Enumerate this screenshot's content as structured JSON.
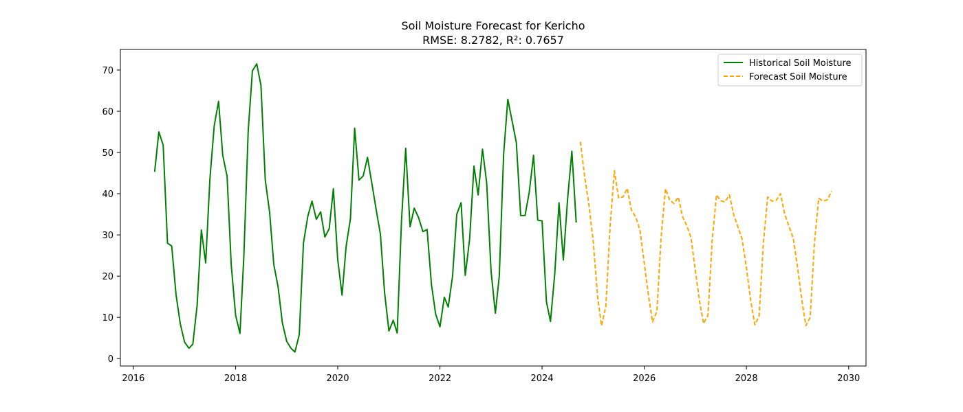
{
  "chart_data": {
    "type": "line",
    "title": "Soil Moisture Forecast for Kericho",
    "subtitle": "RMSE: 8.2782, R²: 0.7657",
    "xlabel": "",
    "ylabel": "",
    "x_axis_type": "date",
    "xlim": [
      "2015-09-30",
      "2030-05-05"
    ],
    "ylim": [
      -1.8,
      75.0
    ],
    "xticks": [
      "2016",
      "2018",
      "2020",
      "2022",
      "2024",
      "2026",
      "2028",
      "2030"
    ],
    "yticks": [
      0,
      10,
      20,
      30,
      40,
      50,
      60,
      70
    ],
    "grid": false,
    "legend_position": "top-right",
    "series": [
      {
        "name": "Historical Soil Moisture",
        "color": "#008000",
        "style": "solid",
        "points": [
          [
            "2016-06",
            45.3
          ],
          [
            "2016-07",
            55.0
          ],
          [
            "2016-08",
            51.8
          ],
          [
            "2016-09",
            28.0
          ],
          [
            "2016-10",
            27.3
          ],
          [
            "2016-11",
            15.5
          ],
          [
            "2016-12",
            8.5
          ],
          [
            "2017-01",
            4.0
          ],
          [
            "2017-02",
            2.5
          ],
          [
            "2017-03",
            3.5
          ],
          [
            "2017-04",
            13.0
          ],
          [
            "2017-05",
            31.2
          ],
          [
            "2017-06",
            23.2
          ],
          [
            "2017-07",
            43.5
          ],
          [
            "2017-08",
            56.5
          ],
          [
            "2017-09",
            62.4
          ],
          [
            "2017-10",
            49.3
          ],
          [
            "2017-11",
            44.2
          ],
          [
            "2017-12",
            22.5
          ],
          [
            "2018-01",
            10.5
          ],
          [
            "2018-02",
            6.1
          ],
          [
            "2018-03",
            25.0
          ],
          [
            "2018-04",
            55.3
          ],
          [
            "2018-05",
            69.8
          ],
          [
            "2018-06",
            71.5
          ],
          [
            "2018-07",
            66.3
          ],
          [
            "2018-08",
            43.3
          ],
          [
            "2018-09",
            35.5
          ],
          [
            "2018-10",
            22.8
          ],
          [
            "2018-11",
            17.3
          ],
          [
            "2018-12",
            8.7
          ],
          [
            "2019-01",
            4.2
          ],
          [
            "2019-02",
            2.5
          ],
          [
            "2019-03",
            1.6
          ],
          [
            "2019-04",
            5.8
          ],
          [
            "2019-05",
            28.0
          ],
          [
            "2019-06",
            34.5
          ],
          [
            "2019-07",
            38.2
          ],
          [
            "2019-08",
            33.8
          ],
          [
            "2019-09",
            35.6
          ],
          [
            "2019-10",
            29.5
          ],
          [
            "2019-11",
            31.5
          ],
          [
            "2019-12",
            41.2
          ],
          [
            "2020-01",
            24.0
          ],
          [
            "2020-02",
            15.4
          ],
          [
            "2020-03",
            27.2
          ],
          [
            "2020-04",
            34.0
          ],
          [
            "2020-05",
            55.9
          ],
          [
            "2020-06",
            43.3
          ],
          [
            "2020-07",
            44.3
          ],
          [
            "2020-08",
            48.8
          ],
          [
            "2020-09",
            42.5
          ],
          [
            "2020-10",
            36.3
          ],
          [
            "2020-11",
            30.2
          ],
          [
            "2020-12",
            16.0
          ],
          [
            "2021-01",
            6.7
          ],
          [
            "2021-02",
            9.3
          ],
          [
            "2021-03",
            6.2
          ],
          [
            "2021-04",
            33.5
          ],
          [
            "2021-05",
            51.0
          ],
          [
            "2021-06",
            32.0
          ],
          [
            "2021-07",
            36.5
          ],
          [
            "2021-08",
            34.2
          ],
          [
            "2021-09",
            30.8
          ],
          [
            "2021-10",
            31.3
          ],
          [
            "2021-11",
            18.0
          ],
          [
            "2021-12",
            10.8
          ],
          [
            "2022-01",
            7.7
          ],
          [
            "2022-02",
            14.9
          ],
          [
            "2022-03",
            12.5
          ],
          [
            "2022-04",
            20.0
          ],
          [
            "2022-05",
            35.0
          ],
          [
            "2022-06",
            37.8
          ],
          [
            "2022-07",
            20.2
          ],
          [
            "2022-08",
            29.0
          ],
          [
            "2022-09",
            46.7
          ],
          [
            "2022-10",
            39.7
          ],
          [
            "2022-11",
            50.8
          ],
          [
            "2022-12",
            42.6
          ],
          [
            "2023-01",
            21.3
          ],
          [
            "2023-02",
            11.0
          ],
          [
            "2023-03",
            20.0
          ],
          [
            "2023-04",
            49.5
          ],
          [
            "2023-05",
            62.9
          ],
          [
            "2023-06",
            57.6
          ],
          [
            "2023-07",
            52.4
          ],
          [
            "2023-08",
            34.7
          ],
          [
            "2023-09",
            34.7
          ],
          [
            "2023-10",
            40.3
          ],
          [
            "2023-11",
            49.3
          ],
          [
            "2023-12",
            33.6
          ],
          [
            "2024-01",
            33.4
          ],
          [
            "2024-02",
            13.8
          ],
          [
            "2024-03",
            9.0
          ],
          [
            "2024-04",
            20.7
          ],
          [
            "2024-05",
            37.8
          ],
          [
            "2024-06",
            23.9
          ],
          [
            "2024-07",
            38.5
          ],
          [
            "2024-08",
            50.3
          ],
          [
            "2024-09",
            33.0
          ]
        ]
      },
      {
        "name": "Forecast Soil Moisture",
        "color": "#FFA500",
        "style": "dashed",
        "points": [
          [
            "2024-10",
            52.6
          ],
          [
            "2024-11",
            44.0
          ],
          [
            "2024-12",
            37.3
          ],
          [
            "2025-01",
            28.3
          ],
          [
            "2025-02",
            15.0
          ],
          [
            "2025-03",
            8.0
          ],
          [
            "2025-04",
            12.6
          ],
          [
            "2025-05",
            32.0
          ],
          [
            "2025-06",
            45.6
          ],
          [
            "2025-07",
            39.0
          ],
          [
            "2025-08",
            39.2
          ],
          [
            "2025-09",
            41.3
          ],
          [
            "2025-10",
            36.0
          ],
          [
            "2025-11",
            34.3
          ],
          [
            "2025-12",
            31.2
          ],
          [
            "2026-01",
            23.0
          ],
          [
            "2026-02",
            15.0
          ],
          [
            "2026-03",
            8.9
          ],
          [
            "2026-04",
            11.5
          ],
          [
            "2026-05",
            29.3
          ],
          [
            "2026-06",
            41.2
          ],
          [
            "2026-07",
            38.5
          ],
          [
            "2026-08",
            37.6
          ],
          [
            "2026-09",
            39.2
          ],
          [
            "2026-10",
            34.5
          ],
          [
            "2026-11",
            32.2
          ],
          [
            "2026-12",
            29.3
          ],
          [
            "2027-01",
            21.3
          ],
          [
            "2027-02",
            13.6
          ],
          [
            "2027-03",
            8.5
          ],
          [
            "2027-04",
            10.5
          ],
          [
            "2027-05",
            28.6
          ],
          [
            "2027-06",
            39.7
          ],
          [
            "2027-07",
            38.3
          ],
          [
            "2027-08",
            38.0
          ],
          [
            "2027-09",
            39.7
          ],
          [
            "2027-10",
            35.0
          ],
          [
            "2027-11",
            32.0
          ],
          [
            "2027-12",
            29.0
          ],
          [
            "2028-01",
            22.0
          ],
          [
            "2028-02",
            14.0
          ],
          [
            "2028-03",
            8.2
          ],
          [
            "2028-04",
            10.3
          ],
          [
            "2028-05",
            28.0
          ],
          [
            "2028-06",
            39.2
          ],
          [
            "2028-07",
            38.2
          ],
          [
            "2028-08",
            38.4
          ],
          [
            "2028-09",
            40.0
          ],
          [
            "2028-10",
            35.0
          ],
          [
            "2028-11",
            32.0
          ],
          [
            "2028-12",
            29.2
          ],
          [
            "2029-01",
            22.0
          ],
          [
            "2029-02",
            14.0
          ],
          [
            "2029-03",
            8.0
          ],
          [
            "2029-04",
            10.0
          ],
          [
            "2029-05",
            28.0
          ],
          [
            "2029-06",
            38.9
          ],
          [
            "2029-07",
            38.2
          ],
          [
            "2029-08",
            38.5
          ],
          [
            "2029-09",
            40.6
          ]
        ]
      }
    ]
  }
}
